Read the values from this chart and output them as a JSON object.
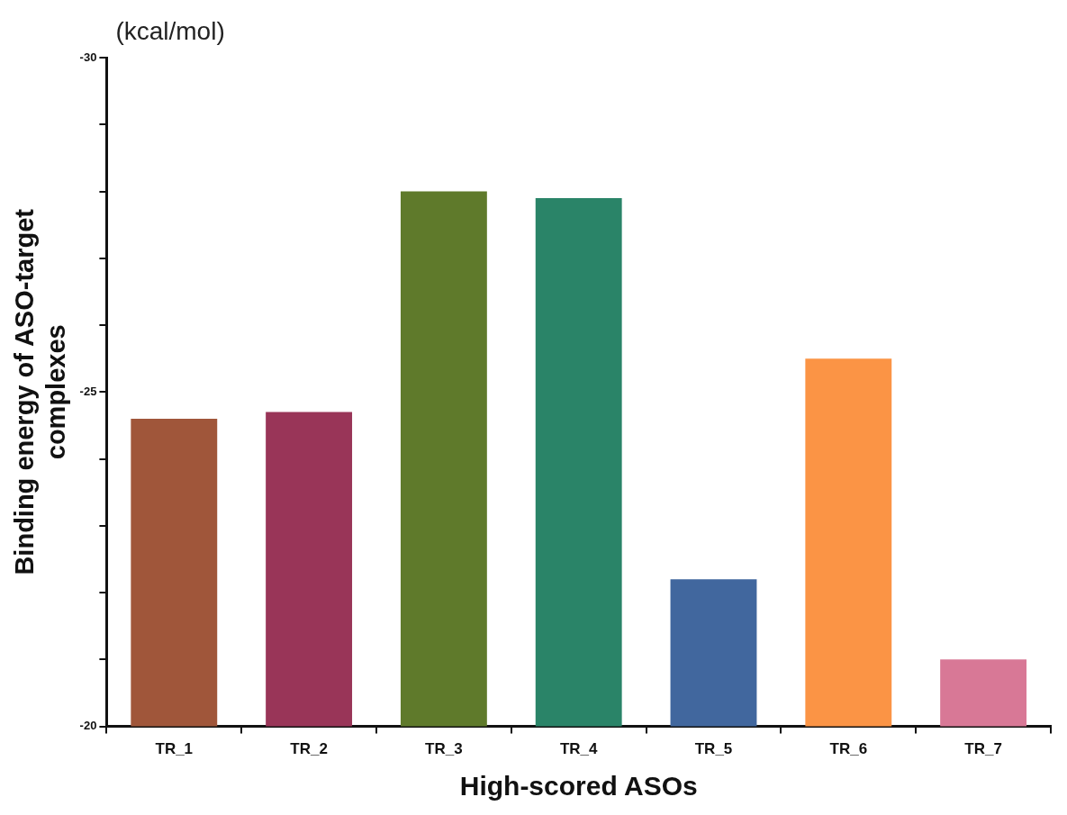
{
  "chart_data": {
    "type": "bar",
    "xlabel": "High-scored ASOs",
    "ylabel": "Binding energy of ASO-target complexes",
    "annotations": [
      "(kcal/mol)"
    ],
    "categories": [
      "TR_1",
      "TR_2",
      "TR_3",
      "TR_4",
      "TR_5",
      "TR_6",
      "TR_7"
    ],
    "values": [
      -24.6,
      -24.7,
      -28.0,
      -27.9,
      -22.2,
      -25.5,
      -21.0
    ],
    "colors": [
      "#a0563a",
      "#993558",
      "#5f7a2b",
      "#2a8468",
      "#41679e",
      "#fb9445",
      "#d87896"
    ],
    "ylim": [
      -20,
      -30
    ],
    "yticks": [
      -20,
      {
        "value": -21,
        "label": null
      },
      {
        "value": -22,
        "label": null
      },
      {
        "value": -23,
        "label": null
      },
      {
        "value": -24,
        "label": null
      },
      -25,
      {
        "value": -26,
        "label": null
      },
      {
        "value": -27,
        "label": null
      },
      {
        "value": -28,
        "label": null
      },
      {
        "value": -29,
        "label": null
      },
      -30
    ],
    "grid": false,
    "legend": false
  }
}
